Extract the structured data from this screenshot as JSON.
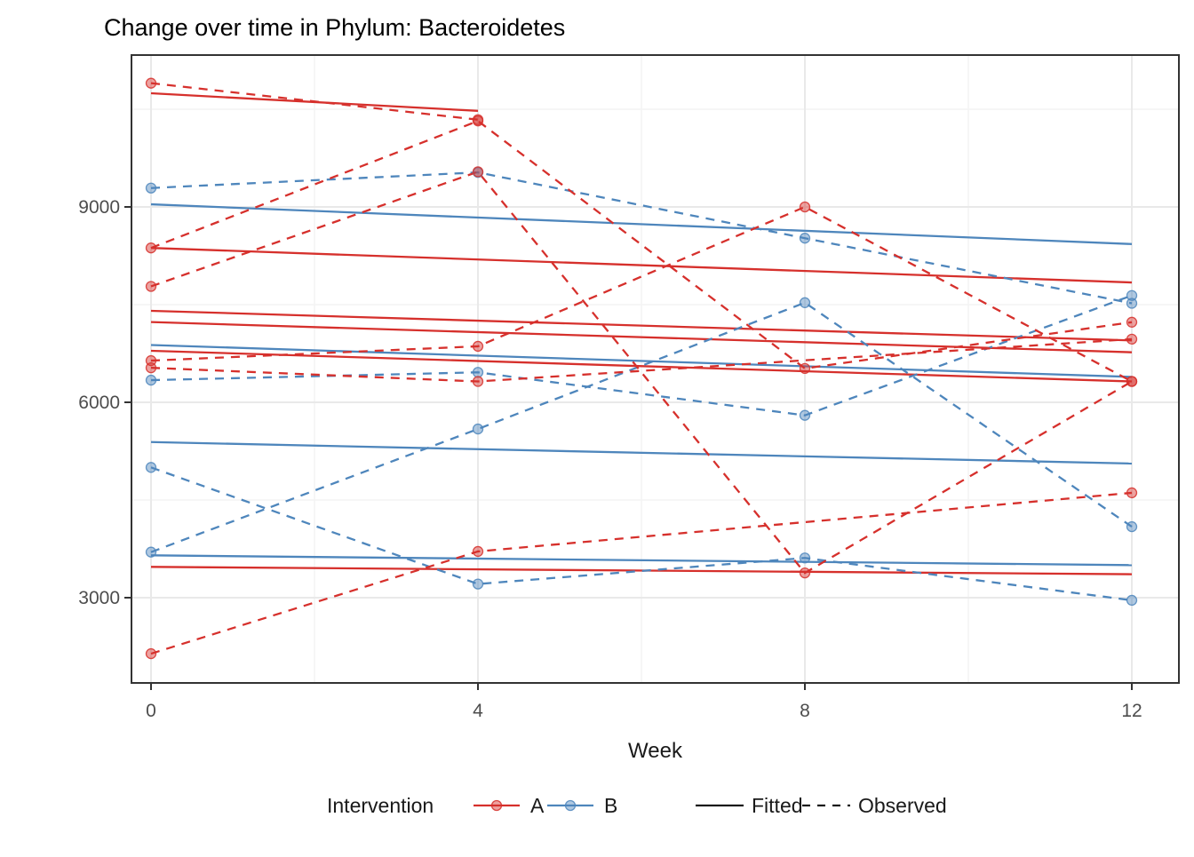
{
  "chart_data": {
    "type": "line",
    "title": "Change over time in Phylum: Bacteroidetes",
    "xlabel": "Week",
    "x_ticks": [
      0,
      4,
      8,
      12
    ],
    "y_ticks": [
      3000,
      6000,
      9000
    ],
    "y_minor_gridlines": [
      4500,
      7500,
      10500
    ],
    "x_minor_weeks": [
      2,
      6,
      10
    ],
    "xlim_weeks": [
      -0.24,
      12.58
    ],
    "ylim": [
      1690,
      11330
    ],
    "grid": true,
    "colors": {
      "A": "#d6302c",
      "B": "#4e86bc",
      "legend_key_line": "#1a1a1a",
      "tick_label": "#4d4d4d",
      "axis_text": "#1a1a1a",
      "panel_border": "#333333",
      "grid_major": "#e9e9e9",
      "grid_minor": "#f3f3f3"
    },
    "legend": {
      "title": "Intervention",
      "color_entries": [
        {
          "label": "A",
          "color": "#d6302c"
        },
        {
          "label": "B",
          "color": "#4e86bc"
        }
      ],
      "linetype_entries": [
        {
          "label": "Fitted",
          "dash": "solid"
        },
        {
          "label": "Observed",
          "dash": "dashed"
        }
      ]
    },
    "series": [
      {
        "id": "A1",
        "group": "A",
        "observed": {
          "weeks": [
            0,
            4
          ],
          "values": [
            10900,
            10340
          ]
        },
        "fitted": {
          "weeks": [
            0,
            4
          ],
          "values": [
            10745,
            10475
          ]
        }
      },
      {
        "id": "A2",
        "group": "A",
        "observed": {
          "weeks": [
            0,
            4,
            8,
            12
          ],
          "values": [
            8370,
            10320,
            6520,
            7230
          ]
        },
        "fitted": {
          "weeks": [
            0,
            12
          ],
          "values": [
            8370,
            7840
          ]
        }
      },
      {
        "id": "A3",
        "group": "A",
        "observed": {
          "weeks": [
            0,
            4,
            8,
            12
          ],
          "values": [
            7780,
            9540,
            3380,
            6320
          ]
        },
        "fitted": {
          "weeks": [
            0,
            12
          ],
          "values": [
            7405,
            6950
          ]
        }
      },
      {
        "id": "A4",
        "group": "A",
        "observed": {
          "weeks": [
            0,
            4,
            8,
            12
          ],
          "values": [
            6640,
            6860,
            9000,
            6320
          ]
        },
        "fitted": {
          "weeks": [
            0,
            12
          ],
          "values": [
            7232,
            6768
          ]
        }
      },
      {
        "id": "A5",
        "group": "A",
        "observed": {
          "weeks": [
            0,
            4,
            12
          ],
          "values": [
            6530,
            6320,
            6970
          ]
        },
        "fitted": {
          "weeks": [
            0,
            12
          ],
          "values": [
            6791,
            6320
          ]
        }
      },
      {
        "id": "A6",
        "group": "A",
        "observed": {
          "weeks": [
            0,
            4,
            12
          ],
          "values": [
            2140,
            3710,
            4610
          ]
        },
        "fitted": {
          "weeks": [
            0,
            12
          ],
          "values": [
            3473,
            3360
          ]
        }
      },
      {
        "id": "B1",
        "group": "B",
        "observed": {
          "weeks": [
            0,
            4,
            8,
            12
          ],
          "values": [
            9290,
            9530,
            8520,
            7520
          ]
        },
        "fitted": {
          "weeks": [
            0,
            12
          ],
          "values": [
            9040,
            8430
          ]
        }
      },
      {
        "id": "B2",
        "group": "B",
        "observed": {
          "weeks": [
            0,
            4,
            8,
            12
          ],
          "values": [
            6340,
            6460,
            5800,
            7640
          ]
        },
        "fitted": {
          "weeks": [
            0,
            12
          ],
          "values": [
            6880,
            6390
          ]
        }
      },
      {
        "id": "B3",
        "group": "B",
        "observed": {
          "weeks": [
            0,
            4,
            8,
            12
          ],
          "values": [
            5000,
            3210,
            3610,
            2960
          ]
        },
        "fitted": {
          "weeks": [
            0,
            12
          ],
          "values": [
            3650,
            3500
          ]
        }
      },
      {
        "id": "B4",
        "group": "B",
        "observed": {
          "weeks": [
            0,
            4,
            8,
            12
          ],
          "values": [
            3700,
            5590,
            7530,
            4090
          ]
        },
        "fitted": {
          "weeks": [
            0,
            12
          ],
          "values": [
            5390,
            5060
          ]
        }
      }
    ]
  }
}
